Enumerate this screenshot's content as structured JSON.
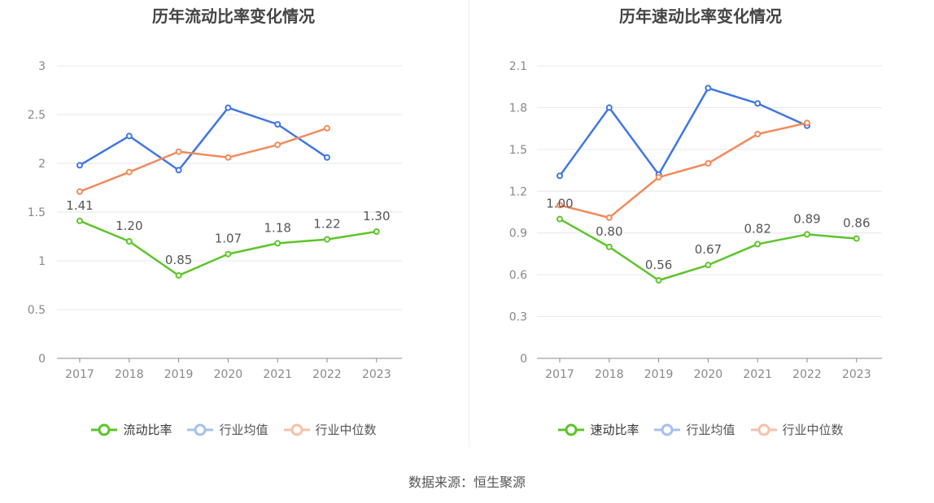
{
  "source_text": "数据来源：恒生聚源",
  "colors": {
    "primary": "#5dc429",
    "avg": "#3f76e0",
    "median": "#f28a5c",
    "grid": "#e6e6ef",
    "axis": "#888888",
    "tick": "#888888",
    "label": "#555555"
  },
  "chart_data": [
    {
      "type": "line",
      "title": "历年流动比率变化情况",
      "categories": [
        "2017",
        "2018",
        "2019",
        "2020",
        "2021",
        "2022",
        "2023"
      ],
      "ylim": [
        0,
        3
      ],
      "yticks": [
        "0",
        "0.5",
        "1",
        "1.5",
        "2",
        "2.5",
        "3"
      ],
      "series": [
        {
          "name": "流动比率",
          "values": [
            1.41,
            1.2,
            0.85,
            1.07,
            1.18,
            1.22,
            1.3
          ],
          "labels": [
            "1.41",
            "1.20",
            "0.85",
            "1.07",
            "1.18",
            "1.22",
            "1.30"
          ]
        },
        {
          "name": "行业均值",
          "values": [
            1.98,
            2.28,
            1.93,
            2.57,
            2.4,
            2.06,
            null
          ]
        },
        {
          "name": "行业中位数",
          "values": [
            1.71,
            1.91,
            2.12,
            2.06,
            2.19,
            2.36,
            null
          ]
        }
      ]
    },
    {
      "type": "line",
      "title": "历年速动比率变化情况",
      "categories": [
        "2017",
        "2018",
        "2019",
        "2020",
        "2021",
        "2022",
        "2023"
      ],
      "ylim": [
        0,
        2.1
      ],
      "yticks": [
        "0",
        "0.3",
        "0.6",
        "0.9",
        "1.2",
        "1.5",
        "1.8",
        "2.1"
      ],
      "series": [
        {
          "name": "速动比率",
          "values": [
            1.0,
            0.8,
            0.56,
            0.67,
            0.82,
            0.89,
            0.86
          ],
          "labels": [
            "1.00",
            "0.80",
            "0.56",
            "0.67",
            "0.82",
            "0.89",
            "0.86"
          ]
        },
        {
          "name": "行业均值",
          "values": [
            1.31,
            1.8,
            1.32,
            1.94,
            1.83,
            1.67,
            null
          ]
        },
        {
          "name": "行业中位数",
          "values": [
            1.1,
            1.01,
            1.3,
            1.4,
            1.61,
            1.69,
            null
          ]
        }
      ]
    }
  ]
}
